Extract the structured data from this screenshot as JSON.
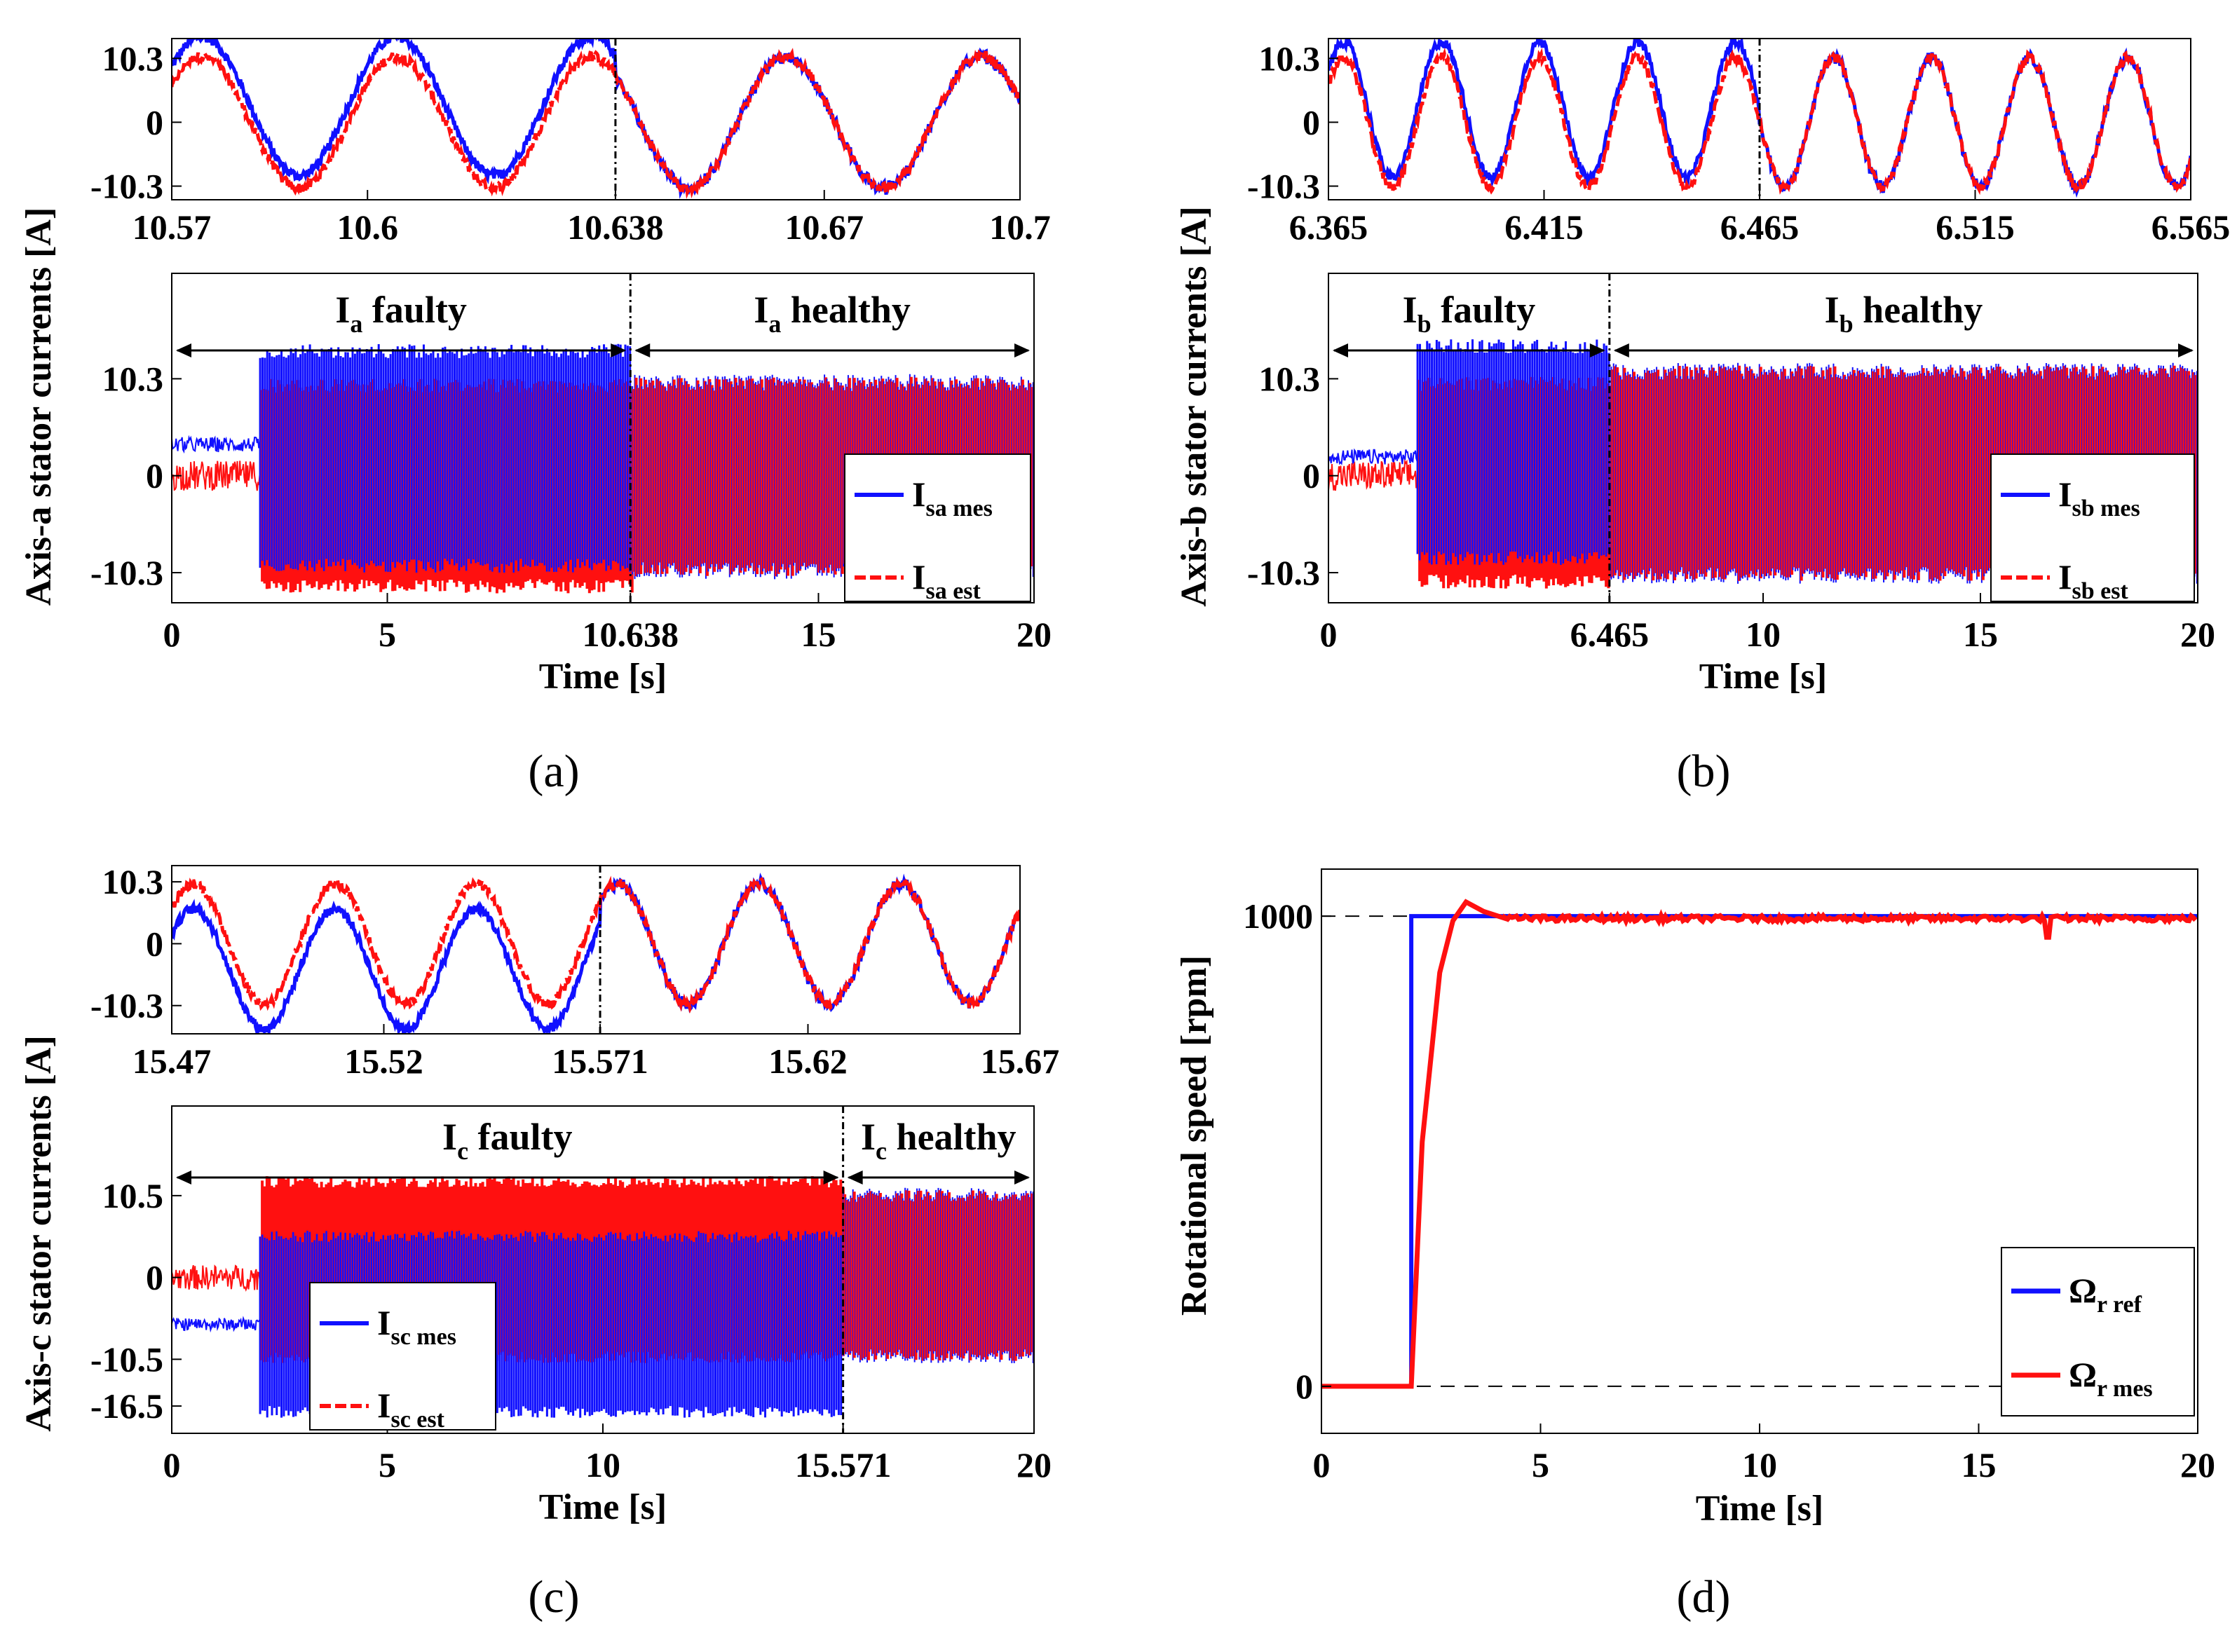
{
  "colors": {
    "measured": "#1010ff",
    "estimated": "#ff1010",
    "axis": "#000000"
  },
  "chart_data": [
    {
      "id": "a",
      "panel_label": "(a)",
      "type": "line",
      "ylabel": "Axis-a stator currents [A]",
      "inset": {
        "xlim": [
          10.57,
          10.7
        ],
        "xticks": [
          "10.57",
          "10.6",
          "10.638",
          "10.67",
          "10.7"
        ],
        "xtick_values": [
          10.57,
          10.6,
          10.638,
          10.67,
          10.7
        ],
        "ylim": [
          -12.5,
          13.5
        ],
        "yticks": [
          "10.3",
          "0",
          "-10.3"
        ],
        "ytick_values": [
          10.3,
          0,
          -10.3
        ],
        "fault_time": 10.638,
        "frequency_hz": 33.5,
        "mes_offset_faulty": 2.6,
        "series": [
          {
            "name": "I_sa mes",
            "amplitude": 11.2,
            "offset_faulty": 2.6
          },
          {
            "name": "I_sa est",
            "amplitude": 10.6,
            "offset_faulty": 0
          }
        ]
      },
      "main": {
        "xlim": [
          0,
          20
        ],
        "xticks": [
          "0",
          "5",
          "10.638",
          "15",
          "20"
        ],
        "xtick_values": [
          0,
          5,
          10.638,
          15,
          20
        ],
        "xlabel": "Time [s]",
        "ylim": [
          -13.5,
          21.5
        ],
        "yticks": [
          "10.3",
          "0",
          "-10.3"
        ],
        "ytick_values": [
          10.3,
          0,
          -10.3
        ],
        "fault_time": 10.638,
        "start_time": 2.05,
        "mes_pre": 3.3,
        "est_pre": 0,
        "mes_band_faulty": [
          -10.3,
          14.0
        ],
        "est_band_faulty": [
          -12.5,
          10.3
        ],
        "band_healthy": [
          -11.0,
          10.8
        ],
        "region_faulty": {
          "var": "I",
          "sub": "a",
          "word": " faulty"
        },
        "region_healthy": {
          "var": "I",
          "sub": "a",
          "word": " healthy"
        },
        "legend": [
          {
            "var": "I",
            "sub": "sa mes",
            "style": "solid"
          },
          {
            "var": "I",
            "sub": "sa est",
            "style": "dashed"
          }
        ]
      }
    },
    {
      "id": "b",
      "panel_label": "(b)",
      "type": "line",
      "ylabel": "Axis-b stator currents [A]",
      "inset": {
        "xlim": [
          6.365,
          6.565
        ],
        "xticks": [
          "6.365",
          "6.415",
          "6.465",
          "6.515",
          "6.565"
        ],
        "xtick_values": [
          6.365,
          6.415,
          6.465,
          6.515,
          6.565
        ],
        "ylim": [
          -12.5,
          13.5
        ],
        "yticks": [
          "10.3",
          "0",
          "-10.3"
        ],
        "ytick_values": [
          10.3,
          0,
          -10.3
        ],
        "fault_time": 6.465,
        "frequency_hz": 44,
        "series": [
          {
            "name": "I_sb mes",
            "amplitude": 11.0,
            "offset_faulty": 2.0
          },
          {
            "name": "I_sb est",
            "amplitude": 10.4,
            "offset_faulty": 0
          }
        ]
      },
      "main": {
        "xlim": [
          0,
          20
        ],
        "xticks": [
          "0",
          "6.465",
          "10",
          "15",
          "20"
        ],
        "xtick_values": [
          0,
          6.465,
          10,
          15,
          20
        ],
        "xlabel": "Time [s]",
        "ylim": [
          -13.5,
          21.5
        ],
        "yticks": [
          "10.3",
          "0",
          "-10.3"
        ],
        "ytick_values": [
          10.3,
          0,
          -10.3
        ],
        "fault_time": 6.465,
        "start_time": 2.05,
        "mes_pre": 2.0,
        "est_pre": 0,
        "mes_band_faulty": [
          -9.5,
          14.5
        ],
        "est_band_faulty": [
          -12.0,
          10.5
        ],
        "band_healthy": [
          -11.5,
          12.0
        ],
        "region_faulty": {
          "var": "I",
          "sub": "b",
          "word": " faulty"
        },
        "region_healthy": {
          "var": "I",
          "sub": "b",
          "word": " healthy"
        },
        "legend": [
          {
            "var": "I",
            "sub": "sb mes",
            "style": "solid"
          },
          {
            "var": "I",
            "sub": "sb est",
            "style": "dashed"
          }
        ]
      }
    },
    {
      "id": "c",
      "panel_label": "(c)",
      "type": "line",
      "ylabel": "Axis-c stator currents [A]",
      "inset": {
        "xlim": [
          15.47,
          15.67
        ],
        "xticks": [
          "15.47",
          "15.52",
          "15.571",
          "15.62",
          "15.67"
        ],
        "xtick_values": [
          15.47,
          15.52,
          15.571,
          15.62,
          15.67
        ],
        "ylim": [
          -15.0,
          13.0
        ],
        "yticks": [
          "10.3",
          "0",
          "-10.3"
        ],
        "ytick_values": [
          10.3,
          0,
          -10.3
        ],
        "fault_time": 15.571,
        "frequency_hz": 30,
        "series": [
          {
            "name": "I_sc mes",
            "amplitude": 10.0,
            "offset_faulty": -4.2
          },
          {
            "name": "I_sc est",
            "amplitude": 10.0,
            "offset_faulty": 0
          }
        ]
      },
      "main": {
        "xlim": [
          0,
          20
        ],
        "xticks": [
          "0",
          "5",
          "10",
          "15.571",
          "20"
        ],
        "xtick_values": [
          0,
          5,
          10,
          15.571,
          20
        ],
        "xlabel": "Time [s]",
        "ylim": [
          -20,
          22
        ],
        "yticks": [
          "10.5",
          "0",
          "-10.5",
          "-16.5"
        ],
        "ytick_values": [
          10.5,
          0,
          -10.5,
          -16.5
        ],
        "fault_time": 15.571,
        "start_time": 2.05,
        "mes_pre": -6.0,
        "est_pre": 0,
        "mes_band_faulty": [
          -18.0,
          6.0
        ],
        "est_band_faulty": [
          -11.0,
          13.0
        ],
        "band_healthy": [
          -11.0,
          11.5
        ],
        "region_faulty": {
          "var": "I",
          "sub": "c",
          "word": " faulty"
        },
        "region_healthy": {
          "var": "I",
          "sub": "c",
          "word": " healthy"
        },
        "legend": [
          {
            "var": "I",
            "sub": "sc mes",
            "style": "solid"
          },
          {
            "var": "I",
            "sub": "sc est",
            "style": "dashed"
          }
        ]
      }
    },
    {
      "id": "d",
      "panel_label": "(d)",
      "type": "line",
      "ylabel": "Rotational speed [rpm]",
      "xlabel": "Time [s]",
      "xlim": [
        0,
        20
      ],
      "xticks": [
        "0",
        "5",
        "10",
        "15",
        "20"
      ],
      "xtick_values": [
        0,
        5,
        10,
        15,
        20
      ],
      "ylim": [
        -100,
        1100
      ],
      "yticks": [
        "1000",
        "0"
      ],
      "ytick_values": [
        1000,
        0
      ],
      "step_time": 2.05,
      "reference_speed": 1000,
      "overshoot_peak": 1030,
      "overshoot_time": 3.3,
      "series": [
        {
          "name": "Ω_r ref",
          "x": [
            0,
            2.05,
            2.05,
            20
          ],
          "y": [
            0,
            0,
            1000,
            1000
          ]
        },
        {
          "name": "Ω_r mes",
          "x": [
            0,
            2.05,
            2.3,
            2.7,
            3.0,
            3.3,
            3.7,
            4.2,
            20
          ],
          "y": [
            0,
            0,
            520,
            880,
            990,
            1030,
            1010,
            995,
            995
          ]
        }
      ],
      "legend": [
        {
          "var": "Ω",
          "sub": "r ref",
          "style": "solid",
          "color": "measured"
        },
        {
          "var": "Ω",
          "sub": "r mes",
          "style": "solid",
          "color": "estimated"
        }
      ]
    }
  ]
}
